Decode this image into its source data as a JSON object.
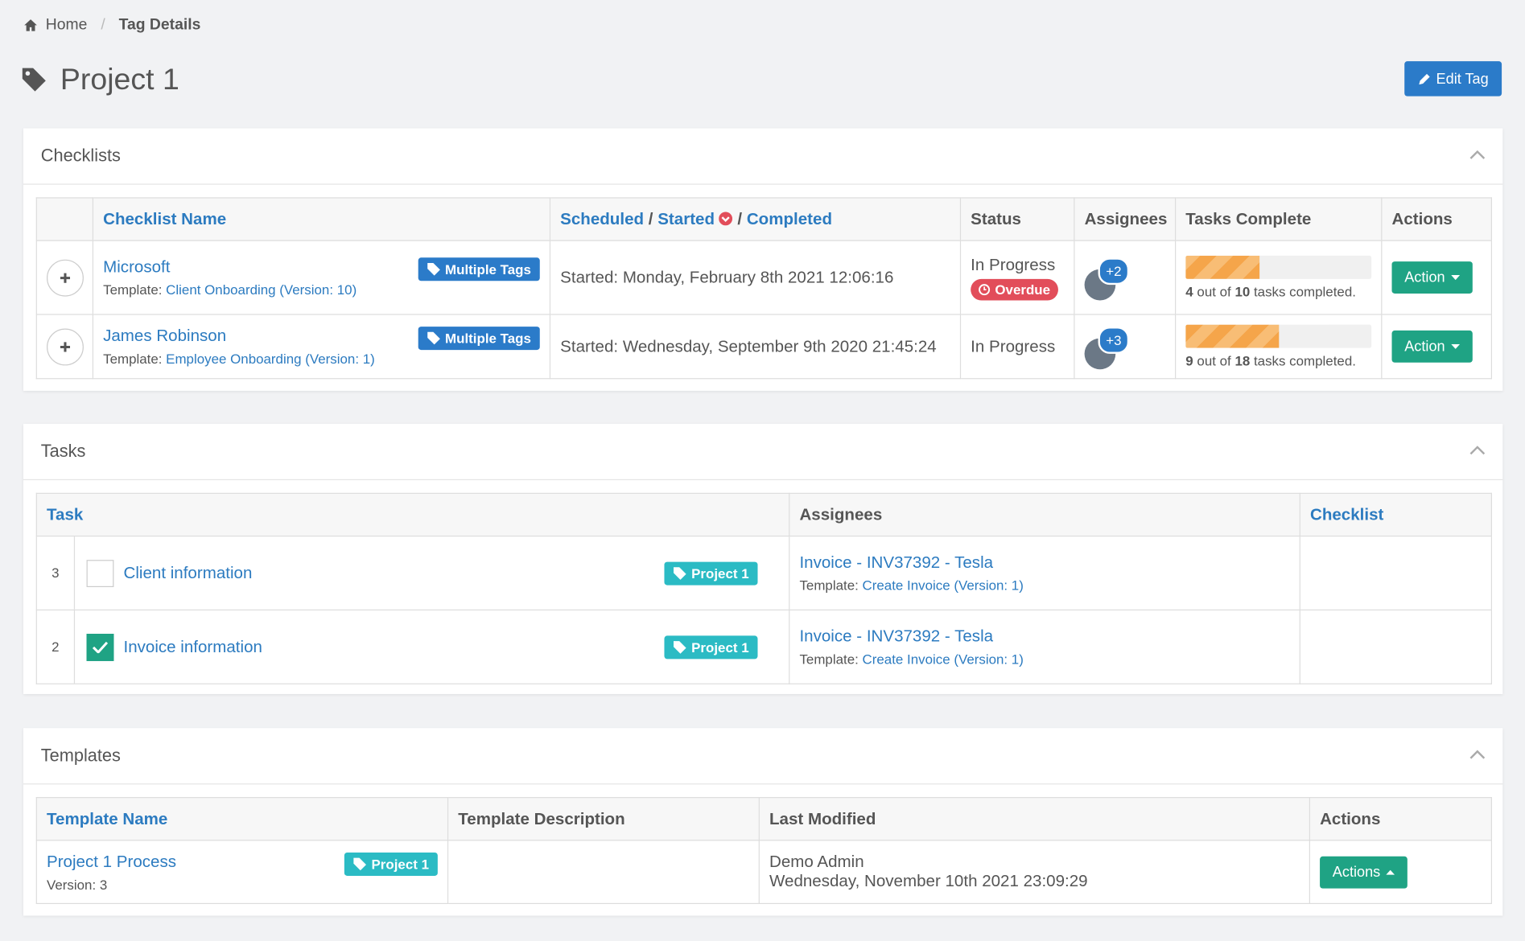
{
  "breadcrumb": {
    "home": "Home",
    "current": "Tag Details"
  },
  "header": {
    "title": "Project 1",
    "edit_button": "Edit Tag"
  },
  "checklists": {
    "title": "Checklists",
    "columns": {
      "name": "Checklist Name",
      "dates": [
        "Scheduled",
        "/",
        "Started",
        "/",
        "Completed"
      ],
      "status": "Status",
      "assignees": "Assignees",
      "tasks": "Tasks Complete",
      "actions": "Actions"
    },
    "rows": [
      {
        "name": "Microsoft",
        "template_label": "Template:",
        "template": "Client Onboarding (Version: 10)",
        "tag": "Multiple Tags",
        "date": "Started: Monday, February 8th 2021 12:06:16",
        "status": "In Progress",
        "badge": "Overdue",
        "assignees_more": "+2",
        "tasks_done": 4,
        "tasks_total": 10,
        "tasks_mid": "out of",
        "tasks_end": "tasks completed.",
        "action": "Action"
      },
      {
        "name": "James Robinson",
        "template_label": "Template:",
        "template": "Employee Onboarding (Version: 1)",
        "tag": "Multiple Tags",
        "date": "Started: Wednesday, September 9th 2020 21:45:24",
        "status": "In Progress",
        "assignees_more": "+3",
        "tasks_done": 9,
        "tasks_total": 18,
        "tasks_mid": "out of",
        "tasks_end": "tasks completed.",
        "action": "Action"
      }
    ]
  },
  "tasks": {
    "title": "Tasks",
    "columns": {
      "task": "Task",
      "assignees": "Assignees",
      "checklist": "Checklist"
    },
    "rows": [
      {
        "number": 3,
        "checked": false,
        "name": "Client information",
        "tag": "Project 1",
        "assignee": "Invoice - INV37392 - Tesla",
        "template_label": "Template:",
        "template": "Create Invoice (Version: 1)"
      },
      {
        "number": 2,
        "checked": true,
        "name": "Invoice information",
        "tag": "Project 1",
        "assignee": "Invoice - INV37392 - Tesla",
        "template_label": "Template:",
        "template": "Create Invoice (Version: 1)"
      }
    ]
  },
  "templates": {
    "title": "Templates",
    "columns": {
      "name": "Template Name",
      "description": "Template Description",
      "modified": "Last Modified",
      "actions": "Actions"
    },
    "rows": [
      {
        "name": "Project 1 Process",
        "version": "Version: 3",
        "tag": "Project 1",
        "modified_by": "Demo Admin",
        "modified_at": "Wednesday, November 10th 2021 23:09:29",
        "action": "Actions"
      }
    ]
  }
}
